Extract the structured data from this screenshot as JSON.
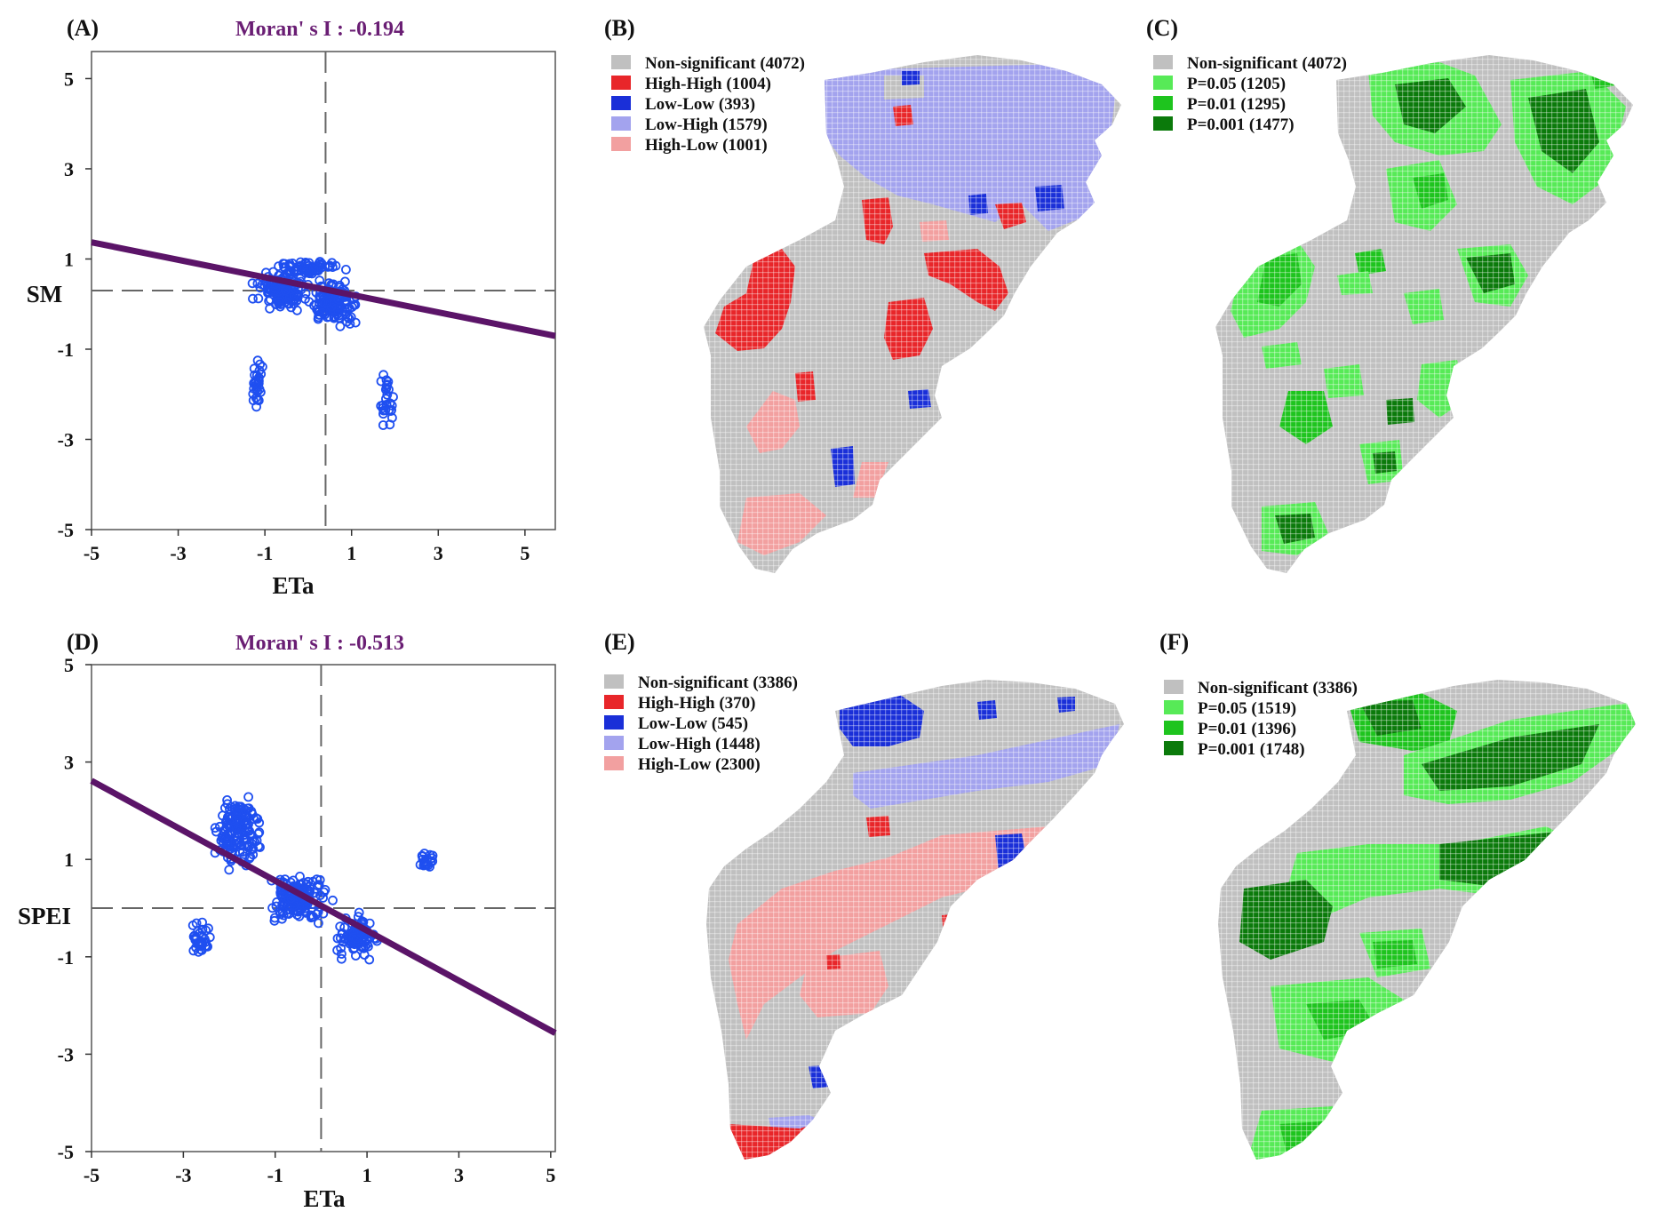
{
  "colors": {
    "points": "#1f4ff0",
    "fit_line": "#5b1468",
    "moran_text": "#6a1e74",
    "ns": "#c0c0c0",
    "hh": "#e8262a",
    "ll": "#1a2fd8",
    "lh": "#a3a3ee",
    "hl": "#f2a0a0",
    "p05": "#57ea57",
    "p01": "#1ec41e",
    "p001": "#0b7a0b"
  },
  "chart_data": [
    {
      "id": "A",
      "type": "scatter",
      "panel_label": "(A)",
      "title": "Moran' s I : -0.194",
      "xlabel": "ETa",
      "ylabel": "SM",
      "xlim": [
        -5,
        5.7
      ],
      "ylim": [
        -5,
        5.6
      ],
      "xticks": [
        "-5",
        "-3",
        "-1",
        "1",
        "3",
        "5"
      ],
      "yticks": [
        "5",
        "3",
        "1",
        "-1",
        "-3",
        "-5"
      ],
      "mean_x": 0.4,
      "mean_y": 0.3,
      "slope": -0.194,
      "intercept": 0.4
    },
    {
      "id": "D",
      "type": "scatter",
      "panel_label": "(D)",
      "title": "Moran' s I : -0.513",
      "xlabel": "ETa",
      "ylabel": "SPEI",
      "xlim": [
        -5,
        5.1
      ],
      "ylim": [
        -5,
        5
      ],
      "xticks": [
        "-5",
        "-3",
        "-1",
        "1",
        "3",
        "5"
      ],
      "yticks": [
        "5",
        "3",
        "1",
        "-1",
        "-3",
        "-5"
      ],
      "mean_x": 0,
      "mean_y": 0,
      "slope": -0.513,
      "intercept": 0.05
    }
  ],
  "maps": {
    "B": {
      "panel_label": "(B)",
      "legend": [
        {
          "key": "ns",
          "label": "Non-significant (4072)"
        },
        {
          "key": "hh",
          "label": "High-High (1004)"
        },
        {
          "key": "ll",
          "label": "Low-Low (393)"
        },
        {
          "key": "lh",
          "label": "Low-High (1579)"
        },
        {
          "key": "hl",
          "label": "High-Low (1001)"
        }
      ]
    },
    "C": {
      "panel_label": "(C)",
      "legend": [
        {
          "key": "ns",
          "label": "Non-significant (4072)"
        },
        {
          "key": "p05",
          "label": "P=0.05 (1205)"
        },
        {
          "key": "p01",
          "label": "P=0.01 (1295)"
        },
        {
          "key": "p001",
          "label": "P=0.001 (1477)"
        }
      ]
    },
    "E": {
      "panel_label": "(E)",
      "legend": [
        {
          "key": "ns",
          "label": "Non-significant (3386)"
        },
        {
          "key": "hh",
          "label": "High-High (370)"
        },
        {
          "key": "ll",
          "label": "Low-Low (545)"
        },
        {
          "key": "lh",
          "label": "Low-High (1448)"
        },
        {
          "key": "hl",
          "label": "High-Low (2300)"
        }
      ]
    },
    "F": {
      "panel_label": "(F)",
      "legend": [
        {
          "key": "ns",
          "label": "Non-significant (3386)"
        },
        {
          "key": "p05",
          "label": "P=0.05 (1519)"
        },
        {
          "key": "p01",
          "label": "P=0.01 (1396)"
        },
        {
          "key": "p001",
          "label": "P=0.001 (1748)"
        }
      ]
    }
  }
}
